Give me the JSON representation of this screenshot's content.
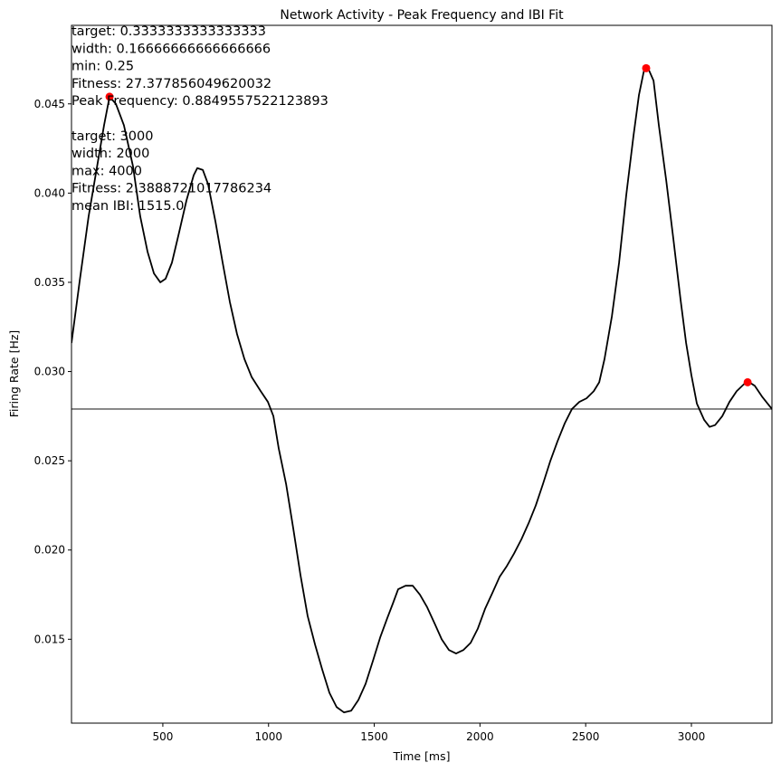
{
  "chart_data": {
    "type": "line",
    "title": "Network Activity - Peak Frequency and IBI Fit",
    "xlabel": "Time [ms]",
    "ylabel": "Firing Rate [Hz]",
    "annotations": [
      [
        "target: 0.3333333333333333",
        "width: 0.16666666666666666",
        "min: 0.25",
        "Fitness: 27.377856049620032",
        "Peak Frequency: 0.8849557522123893"
      ],
      [
        "target: 3000",
        "width: 2000",
        "max: 4000",
        "Fitness: 2.3888721017786234",
        "mean IBI: 1515.0"
      ]
    ],
    "xlim": [
      68,
      3381
    ],
    "ylim": [
      0.0103,
      0.0494
    ],
    "xticks": [
      500,
      1000,
      1500,
      2000,
      2500,
      3000
    ],
    "yticks": [
      0.015,
      {
        "value": 0.02,
        "label": "0.020"
      },
      0.025,
      {
        "value": 0.03,
        "label": "0.030"
      },
      0.035,
      {
        "value": 0.04,
        "label": "0.040"
      },
      0.045
    ],
    "x": [
      68,
      107,
      149,
      192,
      222,
      248,
      278,
      316,
      359,
      393,
      428,
      458,
      488,
      513,
      543,
      577,
      612,
      646,
      663,
      689,
      714,
      749,
      783,
      817,
      851,
      886,
      920,
      963,
      997,
      1023,
      1048,
      1083,
      1117,
      1151,
      1185,
      1220,
      1254,
      1288,
      1322,
      1357,
      1391,
      1425,
      1459,
      1494,
      1528,
      1562,
      1588,
      1613,
      1648,
      1682,
      1716,
      1750,
      1785,
      1819,
      1853,
      1887,
      1922,
      1956,
      1990,
      2024,
      2059,
      2093,
      2127,
      2161,
      2196,
      2230,
      2264,
      2298,
      2333,
      2367,
      2401,
      2435,
      2470,
      2504,
      2538,
      2564,
      2589,
      2624,
      2658,
      2692,
      2726,
      2752,
      2778,
      2795,
      2821,
      2846,
      2881,
      2915,
      2949,
      2975,
      3000,
      3026,
      3060,
      3086,
      3112,
      3146,
      3180,
      3214,
      3249,
      3274,
      3300,
      3334,
      3381
    ],
    "values": [
      0.0316,
      0.0351,
      0.0387,
      0.0417,
      0.0438,
      0.0454,
      0.045,
      0.0438,
      0.0415,
      0.0387,
      0.0367,
      0.0355,
      0.035,
      0.0352,
      0.0361,
      0.0378,
      0.0396,
      0.041,
      0.0414,
      0.0413,
      0.0405,
      0.0384,
      0.0361,
      0.0339,
      0.0321,
      0.0307,
      0.0297,
      0.0289,
      0.0283,
      0.0275,
      0.0257,
      0.0237,
      0.0212,
      0.0186,
      0.0163,
      0.0147,
      0.0133,
      0.012,
      0.0112,
      0.0109,
      0.011,
      0.0116,
      0.0125,
      0.0138,
      0.0151,
      0.0162,
      0.017,
      0.0178,
      0.018,
      0.018,
      0.0175,
      0.0168,
      0.0159,
      0.015,
      0.0144,
      0.0142,
      0.0144,
      0.0148,
      0.0156,
      0.0167,
      0.0176,
      0.0185,
      0.0191,
      0.0198,
      0.0206,
      0.0215,
      0.0225,
      0.0237,
      0.025,
      0.0261,
      0.0271,
      0.0279,
      0.0283,
      0.0285,
      0.0289,
      0.0294,
      0.0307,
      0.0331,
      0.0361,
      0.0399,
      0.0432,
      0.0455,
      0.047,
      0.047,
      0.0463,
      0.0438,
      0.0407,
      0.0374,
      0.034,
      0.0316,
      0.0298,
      0.0282,
      0.0273,
      0.0269,
      0.027,
      0.0275,
      0.0283,
      0.0289,
      0.0293,
      0.0294,
      0.0292,
      0.0286,
      0.0279
    ],
    "color": "#000000",
    "peaks": {
      "x": [
        248,
        2786,
        3266
      ],
      "values": [
        0.0454,
        0.047,
        0.0294
      ],
      "color": "#ff0000"
    },
    "threshold": {
      "value": 0.0279,
      "color": "#808080"
    }
  }
}
